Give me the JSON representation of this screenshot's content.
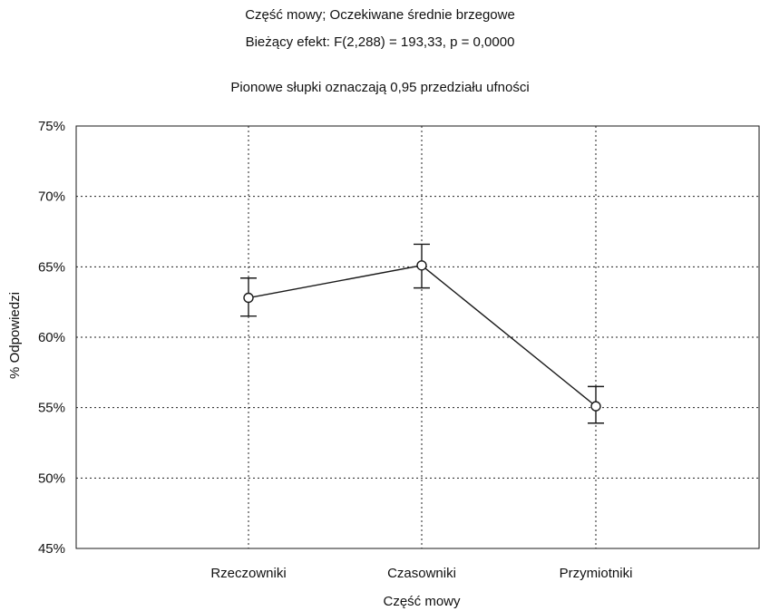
{
  "chart_data": {
    "type": "line",
    "title": "Część mowy; Oczekiwane średnie brzegowe",
    "subtitle": "Bieżący efekt: F(2,288) = 193,33, p = 0,0000",
    "note": "Pionowe słupki oznaczają 0,95 przedziału ufności",
    "xlabel": "Część mowy",
    "ylabel": "% Odpowiedzi",
    "categories": [
      "Rzeczowniki",
      "Czasowniki",
      "Przymiotniki"
    ],
    "series": [
      {
        "values": [
          62.8,
          65.1,
          55.1
        ],
        "ci_lower": [
          61.5,
          63.5,
          53.9
        ],
        "ci_upper": [
          64.2,
          66.6,
          56.5
        ]
      }
    ],
    "ylim": [
      45,
      75
    ],
    "yticks": [
      45,
      50,
      55,
      60,
      65,
      70,
      75
    ],
    "ytick_labels": [
      "45%",
      "50%",
      "55%",
      "60%",
      "65%",
      "70%",
      "75%"
    ],
    "grid": true,
    "grid_style": "dotted",
    "line_color": "#1a1a1a",
    "marker": "open-circle"
  }
}
